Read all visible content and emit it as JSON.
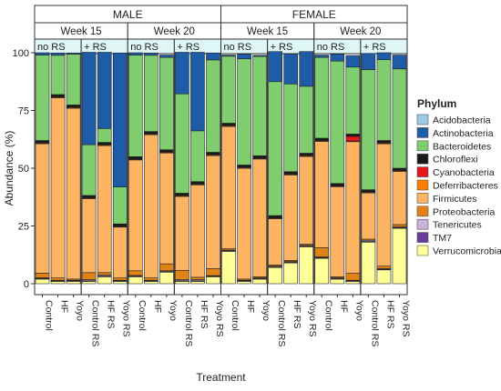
{
  "chart_data": {
    "type": "bar",
    "stacked": true,
    "xlabel": "Treatment",
    "ylabel": "Abundance (%)",
    "ylim": [
      0,
      100
    ],
    "yticks": [
      0,
      25,
      50,
      75,
      100
    ],
    "legend_title": "Phylum",
    "legend_position": "right",
    "sexes": [
      "MALE",
      "FEMALE"
    ],
    "weeks": [
      "Week 15",
      "Week 20"
    ],
    "rs_groups": [
      "no RS",
      "+ RS"
    ],
    "categories": [
      "Control",
      "HF",
      "Yoyo",
      "Control RS",
      "HF RS",
      "Yoyo RS",
      "Control",
      "HF",
      "Yoyo",
      "Control RS",
      "HF RS",
      "Yoyo RS",
      "Control",
      "HF",
      "Yoyo",
      "Control RS",
      "HF RS",
      "Yoyo RS",
      "Control",
      "HF",
      "Yoyo",
      "Control RS",
      "HF RS",
      "Yoyo RS"
    ],
    "series": [
      {
        "name": "Verrucomicrobia",
        "color": "#ffff99",
        "values": [
          2,
          1,
          1,
          1,
          3,
          1,
          3,
          1,
          5,
          1,
          1,
          3,
          14,
          1,
          2,
          7,
          9,
          16,
          11,
          2,
          1,
          18,
          6,
          24
        ]
      },
      {
        "name": "TM7",
        "color": "#6a3d9a",
        "values": [
          0.3,
          0.3,
          0.3,
          0.3,
          0.3,
          0.3,
          0.3,
          0.3,
          0.3,
          0.3,
          0.3,
          0.3,
          0.3,
          0.3,
          0.3,
          0.3,
          0.3,
          0.3,
          0.3,
          0.3,
          0.3,
          0.3,
          0.3,
          0.3
        ]
      },
      {
        "name": "Tenericutes",
        "color": "#cab2d6",
        "values": [
          0.3,
          0.2,
          0.2,
          0.5,
          0.5,
          0.2,
          0.3,
          0.2,
          0.3,
          0.5,
          0.5,
          0.2,
          0.3,
          0.2,
          0.2,
          0.3,
          0.3,
          0.3,
          0.3,
          0.2,
          0.2,
          0.5,
          0.3,
          0.3
        ]
      },
      {
        "name": "Proteobacteria",
        "color": "#e08214",
        "values": [
          2,
          1,
          0.5,
          3,
          1,
          1,
          2,
          1,
          3,
          4,
          1,
          3,
          0.5,
          0.5,
          0.5,
          0.5,
          0.5,
          0.5,
          4,
          0.5,
          3,
          0.5,
          1,
          1
        ]
      },
      {
        "name": "Firmicutes",
        "color": "#fdb462",
        "values": [
          56,
          78,
          74,
          32,
          55,
          22,
          48,
          62,
          48,
          32,
          40,
          49,
          53,
          48,
          51,
          20,
          37,
          38,
          46,
          39,
          57,
          20,
          53,
          23
        ]
      },
      {
        "name": "Deferribacteres",
        "color": "#ff7f00",
        "values": [
          0.3,
          0.3,
          0.3,
          0.3,
          0.3,
          0.3,
          0.3,
          0.3,
          0.3,
          0.3,
          0.3,
          0.3,
          0.3,
          0.3,
          0.3,
          0.3,
          0.3,
          0.3,
          0.3,
          0.3,
          0.3,
          0.3,
          0.3,
          0.3
        ]
      },
      {
        "name": "Cyanobacteria",
        "color": "#e31a1c",
        "values": [
          0.1,
          0.1,
          0.1,
          0.1,
          0.1,
          0.1,
          0.1,
          0.1,
          0.1,
          0.1,
          0.1,
          0.1,
          0.1,
          0.1,
          0.1,
          0.1,
          0.1,
          0.1,
          0.1,
          0.1,
          2,
          0.1,
          0.1,
          0.1
        ]
      },
      {
        "name": "Chloroflexi",
        "color": "#1a1a1a",
        "values": [
          1,
          1,
          1,
          1,
          1,
          1,
          1,
          1,
          1,
          1,
          1,
          1,
          1,
          1,
          1,
          1,
          1,
          1,
          1,
          1,
          1,
          1,
          1,
          1
        ]
      },
      {
        "name": "Bacteroidetes",
        "color": "#7fcd6e",
        "values": [
          37,
          17,
          22,
          22,
          6,
          16,
          44,
          33,
          40,
          43,
          22,
          40,
          29,
          46,
          43,
          58,
          38,
          29,
          35,
          53,
          29,
          52,
          35,
          43
        ]
      },
      {
        "name": "Actinobacteria",
        "color": "#1f5ca8",
        "values": [
          1,
          1,
          0.5,
          40,
          33,
          58,
          1,
          1,
          1,
          18,
          34,
          3,
          0.5,
          2,
          0.5,
          13,
          13,
          15,
          1,
          3,
          5,
          7,
          3,
          6
        ]
      },
      {
        "name": "Acidobacteria",
        "color": "#9ecae1",
        "values": [
          0,
          0,
          0,
          0,
          0,
          0,
          0,
          0,
          0,
          0,
          0,
          0,
          0,
          0,
          0,
          0,
          0,
          0,
          0,
          0,
          0,
          0,
          0,
          0
        ]
      }
    ]
  }
}
